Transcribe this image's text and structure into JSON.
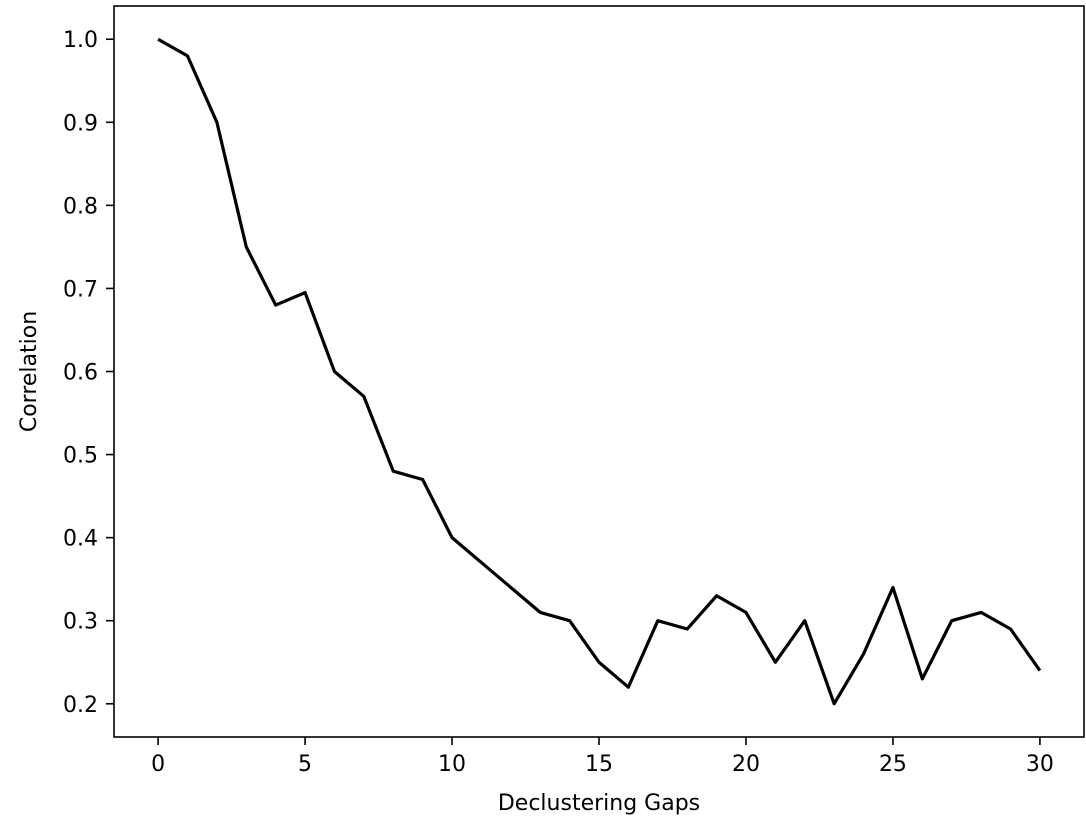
{
  "chart_data": {
    "type": "line",
    "title": "",
    "xlabel": "Declustering Gaps",
    "ylabel": "Correlation",
    "xlim": [
      -1.5,
      31.5
    ],
    "ylim": [
      0.16,
      1.04
    ],
    "xticks": [
      0,
      5,
      10,
      15,
      20,
      25,
      30
    ],
    "xtick_labels": [
      "0",
      "5",
      "10",
      "15",
      "20",
      "25",
      "30"
    ],
    "yticks": [
      0.2,
      0.3,
      0.4,
      0.5,
      0.6,
      0.7,
      0.8,
      0.9,
      1.0
    ],
    "ytick_labels": [
      "0.2",
      "0.3",
      "0.4",
      "0.5",
      "0.6",
      "0.7",
      "0.8",
      "0.9",
      "1.0"
    ],
    "grid": false,
    "legend": "none",
    "colors": {
      "line": "#000000",
      "axes": "#000000",
      "background": "#ffffff"
    },
    "series": [
      {
        "x": [
          0,
          1,
          2,
          3,
          4,
          5,
          6,
          7,
          8,
          9,
          10,
          11,
          12,
          13,
          14,
          15,
          16,
          17,
          18,
          19,
          20,
          21,
          22,
          23,
          24,
          25,
          26,
          27,
          28,
          29,
          30
        ],
        "y": [
          1.0,
          0.98,
          0.9,
          0.75,
          0.68,
          0.695,
          0.6,
          0.57,
          0.48,
          0.47,
          0.4,
          0.37,
          0.34,
          0.31,
          0.3,
          0.25,
          0.22,
          0.3,
          0.29,
          0.33,
          0.31,
          0.25,
          0.3,
          0.2,
          0.26,
          0.34,
          0.23,
          0.3,
          0.31,
          0.29,
          0.24
        ]
      }
    ]
  }
}
